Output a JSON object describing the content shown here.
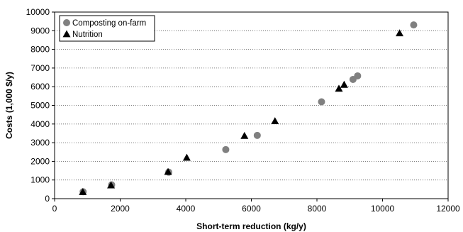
{
  "chart_data": {
    "type": "scatter",
    "xlabel": "Short-term reduction (kg/y)",
    "ylabel": "Costs (1,000 $/y)",
    "xlim": [
      0,
      12000
    ],
    "ylim": [
      0,
      10000
    ],
    "xticks": [
      0,
      2000,
      4000,
      6000,
      8000,
      10000,
      12000
    ],
    "yticks": [
      0,
      1000,
      2000,
      3000,
      4000,
      5000,
      6000,
      7000,
      8000,
      9000,
      10000
    ],
    "grid": "horizontal dotted",
    "legend_position": "top-left",
    "series": [
      {
        "name": "Composting on-farm",
        "marker": "circle",
        "color": "#808080",
        "points": [
          {
            "x": 870,
            "y": 370
          },
          {
            "x": 1740,
            "y": 740
          },
          {
            "x": 3480,
            "y": 1420
          },
          {
            "x": 5220,
            "y": 2630
          },
          {
            "x": 6180,
            "y": 3390
          },
          {
            "x": 8140,
            "y": 5190
          },
          {
            "x": 9100,
            "y": 6390
          },
          {
            "x": 9240,
            "y": 6580
          },
          {
            "x": 10950,
            "y": 9310
          }
        ]
      },
      {
        "name": "Nutrition",
        "marker": "triangle",
        "color": "#000000",
        "points": [
          {
            "x": 860,
            "y": 360
          },
          {
            "x": 1720,
            "y": 720
          },
          {
            "x": 3460,
            "y": 1440
          },
          {
            "x": 4030,
            "y": 2200
          },
          {
            "x": 5790,
            "y": 3370
          },
          {
            "x": 6720,
            "y": 4160
          },
          {
            "x": 8670,
            "y": 5900
          },
          {
            "x": 8830,
            "y": 6110
          },
          {
            "x": 10520,
            "y": 8870
          }
        ]
      }
    ]
  }
}
